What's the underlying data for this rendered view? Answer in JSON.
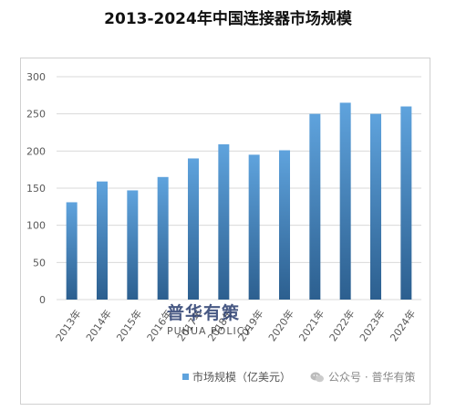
{
  "title": "2013-2024年中国连接器市场规模",
  "legend_label": "市场规模（亿美元）",
  "source_label": "公众号 · 普华有策",
  "watermark": {
    "cn": "普华有策",
    "en": "PUHUA POLICY"
  },
  "colors": {
    "bar_top": "#5fa3dd",
    "bar_bottom": "#2c5f8f",
    "grid": "#d9d9d9",
    "axis_text": "#595959"
  },
  "chart_data": {
    "type": "bar",
    "title": "2013-2024年中国连接器市场规模",
    "categories": [
      "2013年",
      "2014年",
      "2015年",
      "2016年",
      "2017年",
      "2018年",
      "2019年",
      "2020年",
      "2021年",
      "2022年",
      "2023年",
      "2024年"
    ],
    "series": [
      {
        "name": "市场规模（亿美元）",
        "values": [
          131,
          159,
          147,
          165,
          190,
          209,
          195,
          201,
          250,
          265,
          250,
          260
        ]
      }
    ],
    "ylim": [
      0,
      300
    ],
    "yticks": [
      0,
      50,
      100,
      150,
      200,
      250,
      300
    ],
    "grid": true,
    "legend_position": "bottom",
    "xlabel": "",
    "ylabel": ""
  }
}
